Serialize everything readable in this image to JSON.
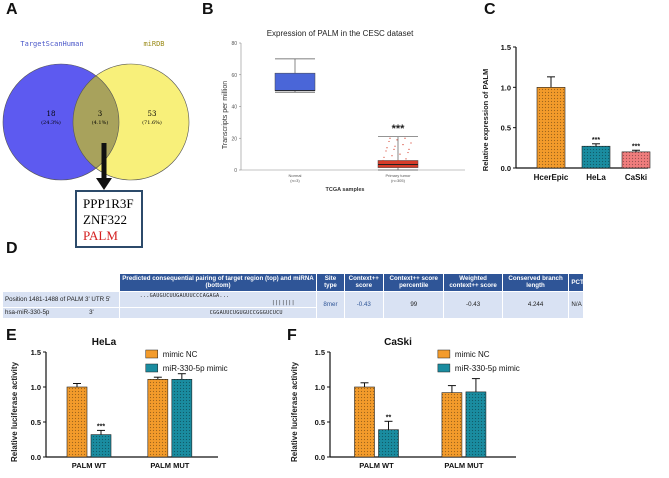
{
  "panels": {
    "a": "A",
    "b": "B",
    "c": "C",
    "d": "D",
    "e": "E",
    "f": "F"
  },
  "panel_a": {
    "left_label": "TargetScanHuman",
    "right_label": "miRDB",
    "left_count": "18",
    "left_pct": "(24.3%)",
    "overlap_count": "3",
    "overlap_pct": "(4.1%)",
    "right_count": "53",
    "right_pct": "(71.6%)",
    "genes": [
      "PPP1R3F",
      "ZNF322",
      "PALM"
    ],
    "colors": {
      "left": "#5d5af0",
      "right": "#f8f07a",
      "overlap": "#a8a25c",
      "palm": "#d42020"
    }
  },
  "chart_data": [
    {
      "panel": "B",
      "type": "box",
      "title": "Expression of PALM in the CESC dataset",
      "xlabel": "TCGA samples",
      "ylabel": "Transcripts per million",
      "ylim": [
        0,
        80
      ],
      "yticks": [
        "0",
        "20",
        "40",
        "60",
        "80"
      ],
      "categories": [
        "Normal\n(n=3)",
        "Primary tumor\n(n=305)"
      ],
      "category_lines": [
        [
          "Normal",
          "(n=3)"
        ],
        [
          "Primary tumor",
          "(n=305)"
        ]
      ],
      "boxes": [
        {
          "min": 49,
          "q1": 50,
          "median": 50,
          "q3": 61,
          "max": 70,
          "color": "#4a66d8"
        },
        {
          "min": 0,
          "q1": 1.5,
          "median": 3.5,
          "q3": 6,
          "max": 21,
          "color": "#d63c2a"
        }
      ],
      "annotation": "***"
    },
    {
      "panel": "C",
      "type": "bar",
      "ylabel": "Relative expression of PALM",
      "ylim": [
        0,
        1.5
      ],
      "yticks": [
        "0.0",
        "0.5",
        "1.0",
        "1.5"
      ],
      "categories": [
        "HcerEpic",
        "HeLa",
        "CaSki"
      ],
      "values": [
        1.0,
        0.27,
        0.2
      ],
      "errors": [
        0.13,
        0.03,
        0.02
      ],
      "colors": [
        "#f39b2b",
        "#1a8ca0",
        "#ef7d7d"
      ],
      "annotations": [
        "",
        "***",
        "***"
      ]
    },
    {
      "panel": "E",
      "type": "bar",
      "title": "HeLa",
      "ylabel": "Relative luciferase activity",
      "ylim": [
        0,
        1.5
      ],
      "yticks": [
        "0.0",
        "0.5",
        "1.0",
        "1.5"
      ],
      "categories": [
        "PALM WT",
        "PALM MUT"
      ],
      "series": [
        {
          "name": "mimic NC",
          "values": [
            1.0,
            1.11
          ],
          "errors": [
            0.05,
            0.03
          ],
          "color": "#f39b2b"
        },
        {
          "name": "miR-330-5p mimic",
          "values": [
            0.32,
            1.11
          ],
          "errors": [
            0.06,
            0.08
          ],
          "color": "#1a8ca0"
        }
      ],
      "annotations": [
        [
          "",
          "***"
        ],
        [
          "",
          ""
        ]
      ]
    },
    {
      "panel": "F",
      "type": "bar",
      "title": "CaSki",
      "ylabel": "Relative luciferase activity",
      "ylim": [
        0,
        1.5
      ],
      "yticks": [
        "0.0",
        "0.5",
        "1.0",
        "1.5"
      ],
      "categories": [
        "PALM WT",
        "PALM MUT"
      ],
      "series": [
        {
          "name": "mimic NC",
          "values": [
            1.0,
            0.92
          ],
          "errors": [
            0.06,
            0.1
          ],
          "color": "#f39b2b"
        },
        {
          "name": "miR-330-5p mimic",
          "values": [
            0.39,
            0.93
          ],
          "errors": [
            0.12,
            0.19
          ],
          "color": "#1a8ca0"
        }
      ],
      "annotations": [
        [
          "",
          "**"
        ],
        [
          "",
          ""
        ]
      ]
    }
  ],
  "table": {
    "headers": [
      "",
      "Predicted consequential pairing of target region (top) and miRNA (bottom)",
      "Site type",
      "Context++ score",
      "Context++ score percentile",
      "Weighted context++ score",
      "Conserved branch length",
      "PCT"
    ],
    "row1_label": "Position 1481-1488 of PALM 3' UTR",
    "row2_label": "hsa-miR-330-5p",
    "prime5": "5'",
    "prime3": "3'",
    "target_seq": "...GAUGUCUUGAUUUCCCAGAGA...",
    "bars": "|||||||",
    "mirna_seq": "CGGAUUCUGUGUCCGGGUCUCU",
    "site_type": "8mer",
    "context_score": "-0.43",
    "percentile": "99",
    "weighted": "-0.43",
    "branch_length": "4.244",
    "pct": "N/A"
  }
}
